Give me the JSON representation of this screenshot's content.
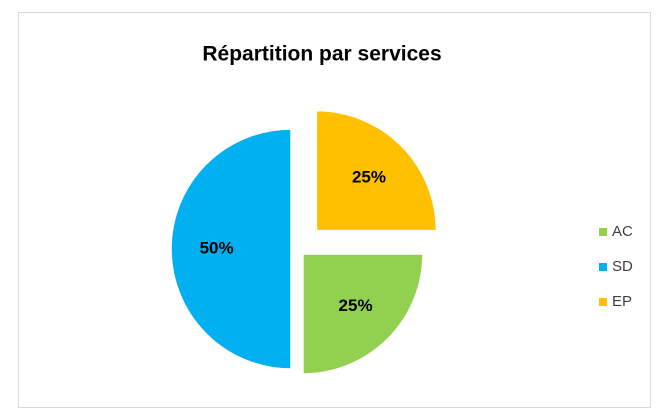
{
  "chart_data": {
    "type": "pie",
    "title": "Répartition par services",
    "categories": [
      "AC",
      "SD",
      "EP"
    ],
    "values": [
      25,
      50,
      25
    ],
    "value_labels": [
      "25%",
      "50%",
      "25%"
    ],
    "colors": [
      "#92d050",
      "#00b0f0",
      "#ffc000"
    ],
    "legend": "right"
  }
}
